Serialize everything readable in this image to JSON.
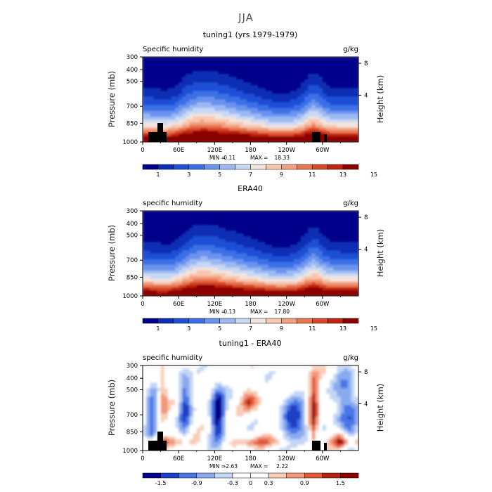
{
  "figure": {
    "super_title": "JJA"
  },
  "chart_data": [
    {
      "type": "heatmap",
      "title": "tuning1 (yrs 1979-1979)",
      "left_string": "Specific humidity",
      "right_string": "g/kg",
      "ylabel": "Pressure (mb)",
      "ylabel_right": "Height (km)",
      "x_ticks": [
        "0",
        "60E",
        "120E",
        "180",
        "120W",
        "60W"
      ],
      "y_ticks": [
        "300",
        "400",
        "500",
        "700",
        "850",
        "1000"
      ],
      "y_right_ticks": [
        "8",
        "4"
      ],
      "min_label": "MIN =",
      "min": "0.11",
      "max_label": "MAX =",
      "max": "18.33",
      "colorbar_labels": [
        "1",
        "3",
        "5",
        "7",
        "9",
        "11",
        "13",
        "15"
      ],
      "field": "absolute",
      "topography": true
    },
    {
      "type": "heatmap",
      "title": "ERA40",
      "left_string": "specific humidity",
      "right_string": "g/kg",
      "ylabel": "Pressure (mb)",
      "ylabel_right": "Height (km)",
      "x_ticks": [
        "0",
        "60E",
        "120E",
        "180",
        "120W",
        "60W"
      ],
      "y_ticks": [
        "300",
        "400",
        "500",
        "700",
        "850",
        "1000"
      ],
      "y_right_ticks": [
        "8",
        "4"
      ],
      "min_label": "MIN =",
      "min": "0.13",
      "max_label": "MAX =",
      "max": "17.80",
      "colorbar_labels": [
        "1",
        "3",
        "5",
        "7",
        "9",
        "11",
        "13",
        "15"
      ],
      "field": "absolute",
      "topography": false
    },
    {
      "type": "heatmap",
      "title": "tuning1 - ERA40",
      "left_string": "specific humidity",
      "right_string": "g/kg",
      "ylabel": "Pressure (mb)",
      "ylabel_right": "Height (km)",
      "x_ticks": [
        "0",
        "60E",
        "120E",
        "180",
        "120W",
        "60W"
      ],
      "y_ticks": [
        "300",
        "400",
        "500",
        "700",
        "850",
        "1000"
      ],
      "y_right_ticks": [
        "8",
        "4"
      ],
      "min_label": "MIN =",
      "min": "-2.63",
      "max_label": "MAX =",
      "max": "2.22",
      "colorbar_labels": [
        "-1.5",
        "-0.9",
        "-0.3",
        "0",
        "0.3",
        "0.9",
        "1.5"
      ],
      "field": "difference",
      "topography": true
    }
  ],
  "colors": {
    "sequential": [
      "#00008b",
      "#0a2fb4",
      "#1f4fd6",
      "#3a6fe6",
      "#6a93ef",
      "#9bb8f3",
      "#c7d8f5",
      "#f2e4dc",
      "#f8c7b0",
      "#f3a07f",
      "#e8764f",
      "#d9482a",
      "#c0230f",
      "#8b0000"
    ],
    "diverging": [
      "#00008b",
      "#1a3fc8",
      "#4a74e6",
      "#8aaaf0",
      "#c3d6f5",
      "#ffffff",
      "#ffffff",
      "#f8cdb8",
      "#f2977a",
      "#e05a3a",
      "#b5220f",
      "#8b0000"
    ]
  }
}
